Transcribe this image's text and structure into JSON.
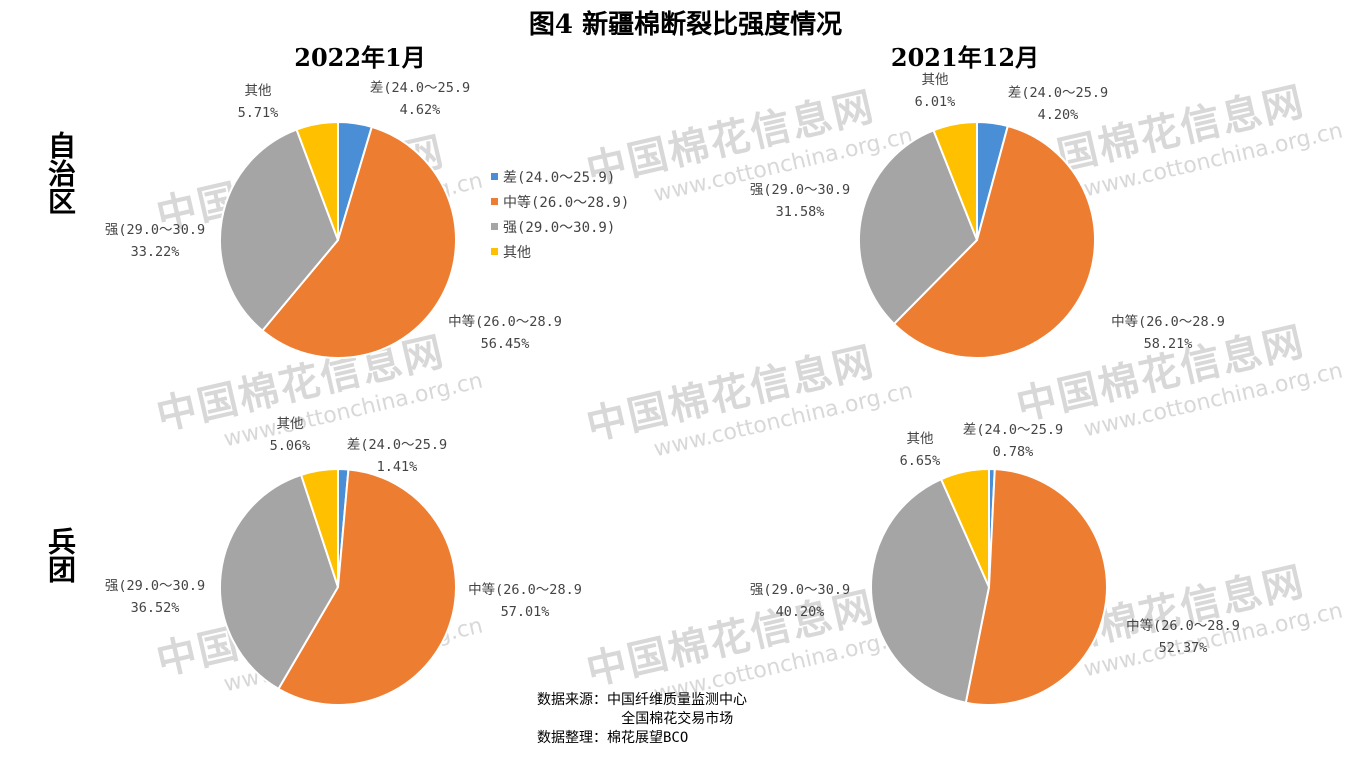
{
  "title": "图4  新疆棉断裂比强度情况",
  "columns": [
    "2022年1月",
    "2021年12月"
  ],
  "rows": [
    "自治区",
    "兵团"
  ],
  "legend": [
    {
      "label": "差(24.0～25.9)",
      "color": "#4a8fd6"
    },
    {
      "label": "中等(26.0～28.9)",
      "color": "#ed7d31"
    },
    {
      "label": "强(29.0～30.9)",
      "color": "#a5a5a5"
    },
    {
      "label": "其他",
      "color": "#ffc000"
    }
  ],
  "watermark": {
    "cn": "中国棉花信息网",
    "en": "www.cottonchina.org.cn"
  },
  "source": {
    "line1": "数据来源：中国纤维质量监测中心",
    "line2": "          全国棉花交易市场",
    "line3": "数据整理：棉花展望BCO"
  },
  "chart_data": [
    {
      "type": "pie",
      "title": "2022年1月 自治区",
      "categories": [
        "差(24.0～25.9",
        "中等(26.0～28.9",
        "强(29.0～30.9",
        "其他"
      ],
      "values": [
        4.62,
        56.45,
        33.22,
        5.71
      ],
      "value_labels": [
        "4.62%",
        "56.45%",
        "33.22%",
        "5.71%"
      ]
    },
    {
      "type": "pie",
      "title": "2021年12月 自治区",
      "categories": [
        "差(24.0～25.9",
        "中等(26.0～28.9",
        "强(29.0～30.9",
        "其他"
      ],
      "values": [
        4.2,
        58.21,
        31.58,
        6.01
      ],
      "value_labels": [
        "4.20%",
        "58.21%",
        "31.58%",
        "6.01%"
      ]
    },
    {
      "type": "pie",
      "title": "2022年1月 兵团",
      "categories": [
        "差(24.0～25.9",
        "中等(26.0～28.9",
        "强(29.0～30.9",
        "其他"
      ],
      "values": [
        1.41,
        57.01,
        36.52,
        5.06
      ],
      "value_labels": [
        "1.41%",
        "57.01%",
        "36.52%",
        "5.06%"
      ]
    },
    {
      "type": "pie",
      "title": "2021年12月 兵团",
      "categories": [
        "差(24.0～25.9",
        "中等(26.0～28.9",
        "强(29.0～30.9",
        "其他"
      ],
      "values": [
        0.78,
        52.37,
        40.2,
        6.65
      ],
      "value_labels": [
        "0.78%",
        "52.37%",
        "40.20%",
        "6.65%"
      ]
    }
  ]
}
